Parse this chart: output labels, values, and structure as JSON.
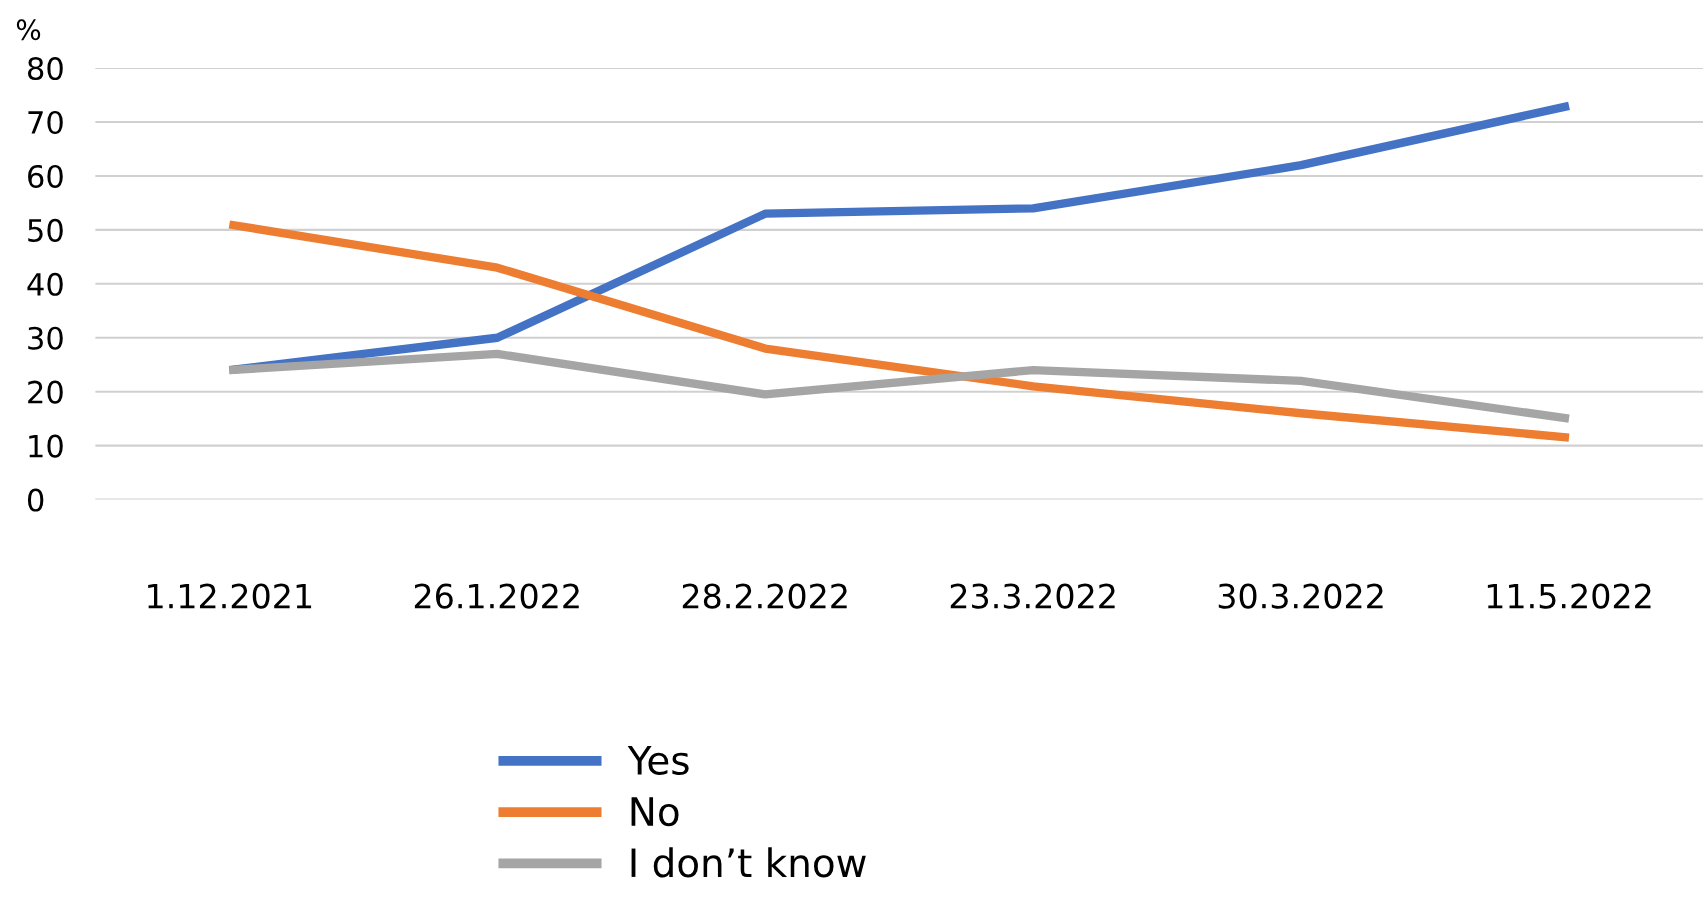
{
  "chart_data": {
    "type": "line",
    "ylabel": "%",
    "categories": [
      "1.12.2021",
      "26.1.2022",
      "28.2.2022",
      "23.3.2022",
      "30.3.2022",
      "11.5.2022"
    ],
    "series": [
      {
        "name": "Yes",
        "color": "#4472c4",
        "values": [
          24,
          30,
          53,
          54,
          62,
          73
        ]
      },
      {
        "name": "No",
        "color": "#ed7d31",
        "values": [
          51,
          43,
          28,
          21,
          16,
          11.5
        ]
      },
      {
        "name": "I don’t know",
        "color": "#a5a5a5",
        "values": [
          24,
          27,
          19.5,
          24,
          22,
          15
        ]
      }
    ],
    "ylim": [
      0,
      80
    ],
    "yticks": [
      0,
      10,
      20,
      30,
      40,
      50,
      60,
      70,
      80
    ],
    "grid": "y",
    "legend": "bottom",
    "marker": "none",
    "line_style": "solid"
  }
}
